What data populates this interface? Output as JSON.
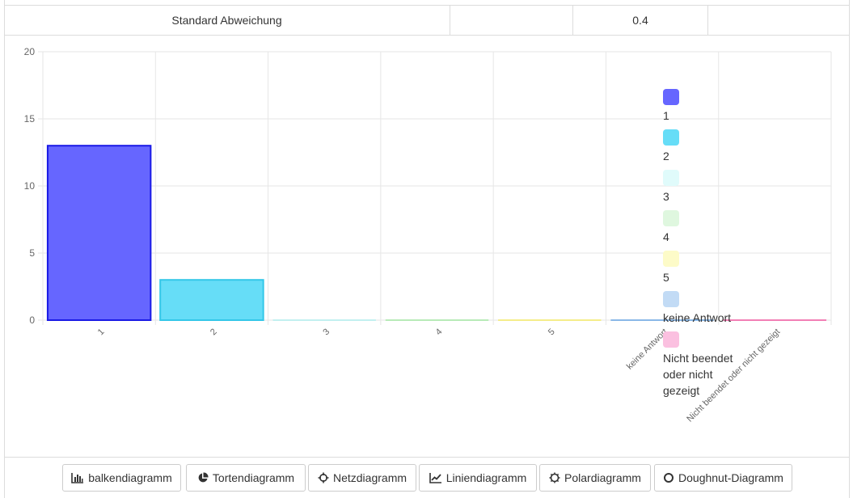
{
  "stats_row": {
    "label": "Standard Abweichung",
    "empty_cell": "",
    "value": "0.4"
  },
  "chart_data": {
    "type": "bar",
    "categories": [
      "1",
      "2",
      "3",
      "4",
      "5",
      "keine Antwort",
      "Nicht beendet oder nicht gezeigt"
    ],
    "values": [
      13,
      3,
      0,
      0,
      0,
      0,
      0
    ],
    "ylim": [
      0,
      20
    ],
    "yticks": [
      "0",
      "5",
      "10",
      "15",
      "20"
    ],
    "grid": true,
    "legend_position": "right",
    "legend": [
      "1",
      "2",
      "3",
      "4",
      "5",
      "keine Antwort",
      "Nicht beendet oder nicht gezeigt"
    ],
    "colors": {
      "fill": [
        "#6666ff",
        "#66ddf7",
        "#e0fbfb",
        "#dff7df",
        "#fdfbc8",
        "#c2dbf5",
        "#fbc0e0"
      ],
      "stroke": [
        "#1a1ae6",
        "#33c7e8",
        "#c2f0f0",
        "#b8ebb8",
        "#f5ed8a",
        "#8ab8e8",
        "#f27fb5"
      ]
    }
  },
  "buttons": [
    {
      "label": "balkendiagramm",
      "icon": "bar-chart-icon"
    },
    {
      "label": "Tortendiagramm",
      "icon": "pie-chart-icon"
    },
    {
      "label": "Netzdiagramm",
      "icon": "radar-chart-icon"
    },
    {
      "label": "Liniendiagramm",
      "icon": "line-chart-icon"
    },
    {
      "label": "Polardiagramm",
      "icon": "polar-chart-icon"
    },
    {
      "label": "Doughnut-Diagramm",
      "icon": "doughnut-chart-icon"
    }
  ]
}
